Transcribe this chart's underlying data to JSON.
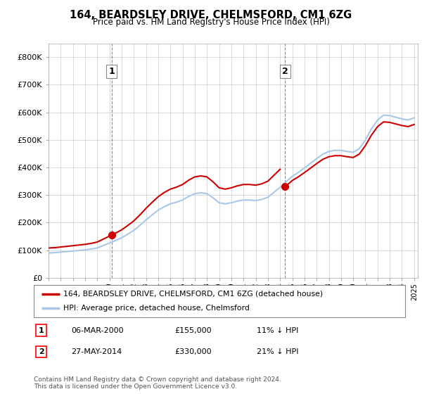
{
  "title": "164, BEARDSLEY DRIVE, CHELMSFORD, CM1 6ZG",
  "subtitle": "Price paid vs. HM Land Registry's House Price Index (HPI)",
  "ylim": [
    0,
    850000
  ],
  "yticks": [
    0,
    100000,
    200000,
    300000,
    400000,
    500000,
    600000,
    700000,
    800000
  ],
  "ytick_labels": [
    "£0",
    "£100K",
    "£200K",
    "£300K",
    "£400K",
    "£500K",
    "£600K",
    "£700K",
    "£800K"
  ],
  "hpi_color": "#a8c8e8",
  "price_color": "#cc0000",
  "vline_color": "#cc0000",
  "grid_color": "#cccccc",
  "bg_color": "#ffffff",
  "transaction1_date": "06-MAR-2000",
  "transaction1_price": 155000,
  "transaction1_pct": "11% ↓ HPI",
  "transaction2_date": "27-MAY-2014",
  "transaction2_price": 330000,
  "transaction2_pct": "21% ↓ HPI",
  "footnote": "Contains HM Land Registry data © Crown copyright and database right 2024.\nThis data is licensed under the Open Government Licence v3.0.",
  "legend_label_price": "164, BEARDSLEY DRIVE, CHELMSFORD, CM1 6ZG (detached house)",
  "legend_label_hpi": "HPI: Average price, detached house, Chelmsford",
  "hpi_x": [
    1995.0,
    1995.5,
    1996.0,
    1996.5,
    1997.0,
    1997.5,
    1998.0,
    1998.5,
    1999.0,
    1999.5,
    2000.0,
    2000.5,
    2001.0,
    2001.5,
    2002.0,
    2002.5,
    2003.0,
    2003.5,
    2004.0,
    2004.5,
    2005.0,
    2005.5,
    2006.0,
    2006.5,
    2007.0,
    2007.5,
    2008.0,
    2008.5,
    2009.0,
    2009.5,
    2010.0,
    2010.5,
    2011.0,
    2011.5,
    2012.0,
    2012.5,
    2013.0,
    2013.5,
    2014.0,
    2014.5,
    2015.0,
    2015.5,
    2016.0,
    2016.5,
    2017.0,
    2017.5,
    2018.0,
    2018.5,
    2019.0,
    2019.5,
    2020.0,
    2020.5,
    2021.0,
    2021.5,
    2022.0,
    2022.5,
    2023.0,
    2023.5,
    2024.0,
    2024.5,
    2025.0
  ],
  "hpi_y": [
    90000,
    91000,
    93000,
    95000,
    97000,
    99000,
    101000,
    104000,
    108000,
    117000,
    126000,
    135000,
    145000,
    158000,
    172000,
    190000,
    210000,
    228000,
    245000,
    258000,
    268000,
    274000,
    282000,
    295000,
    305000,
    308000,
    305000,
    290000,
    272000,
    268000,
    272000,
    278000,
    282000,
    282000,
    280000,
    284000,
    292000,
    310000,
    328000,
    348000,
    368000,
    382000,
    398000,
    415000,
    432000,
    448000,
    458000,
    462000,
    462000,
    458000,
    455000,
    468000,
    500000,
    540000,
    572000,
    590000,
    588000,
    582000,
    576000,
    572000,
    580000
  ],
  "vline1_x": 2000.18,
  "vline2_x": 2014.41,
  "t1_price": 155000,
  "t2_price": 330000,
  "xmin": 1995.0,
  "xmax": 2025.3
}
